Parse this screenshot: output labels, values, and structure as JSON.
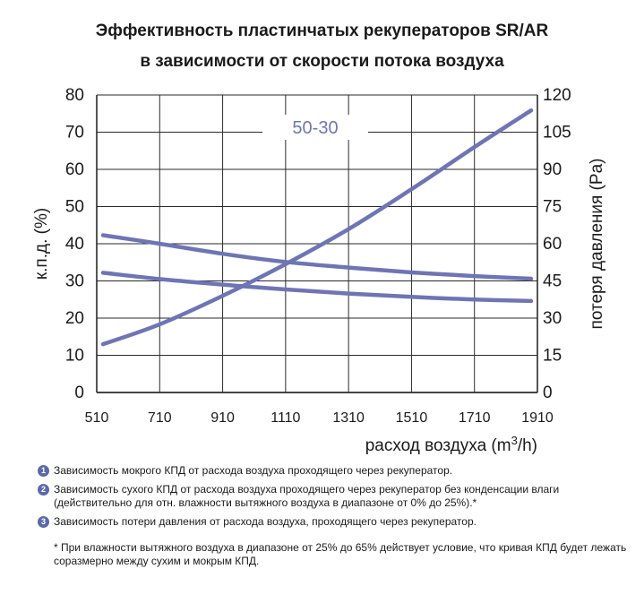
{
  "chart_data": {
    "type": "line",
    "title": "Эффективность пластинчатых рекуператоров SR/AR",
    "subtitle": "в зависимости от скорости потока воздуха",
    "xlabel_main": "расход воздуха (m",
    "xlabel_sup": "3",
    "xlabel_tail": "/h)",
    "ylabel": "к.п.д. (%)",
    "y2label": "потеря давления (Pa)",
    "annotation": "50-30",
    "xlim": [
      510,
      1910
    ],
    "ylim": [
      0,
      80
    ],
    "y2lim": [
      0,
      120
    ],
    "grid": true,
    "line_color": "#6e75b5",
    "xticks": [
      "510",
      "710",
      "910",
      "1110",
      "1310",
      "1510",
      "1710",
      "1910"
    ],
    "yticks": [
      "0",
      "10",
      "20",
      "30",
      "40",
      "50",
      "60",
      "70",
      "80"
    ],
    "y2ticks": [
      "0",
      "15",
      "30",
      "45",
      "60",
      "75",
      "90",
      "105",
      "120"
    ],
    "series": [
      {
        "axis": "left",
        "x": [
          530,
          710,
          910,
          1110,
          1310,
          1510,
          1710,
          1890
        ],
        "y": [
          42.3,
          40,
          37.3,
          35.1,
          33.6,
          32.3,
          31.3,
          30.6
        ]
      },
      {
        "axis": "left",
        "x": [
          530,
          710,
          910,
          1110,
          1310,
          1510,
          1710,
          1890
        ],
        "y": [
          32.2,
          30.5,
          29,
          27.7,
          26.6,
          25.7,
          25,
          24.6
        ]
      },
      {
        "axis": "right",
        "x": [
          530,
          710,
          910,
          1110,
          1310,
          1510,
          1710,
          1890
        ],
        "y": [
          19.5,
          27.5,
          39,
          51.8,
          65.9,
          82,
          99,
          113.8
        ]
      }
    ]
  },
  "notes": [
    {
      "marker": "1",
      "text": "Зависимость мокрого КПД от расхода воздуха проходящего через рекуператор."
    },
    {
      "marker": "2",
      "text": "Зависимость сухого КПД от расхода воздуха проходящего через рекуператор без конденсации влаги (действительно для отн. влажности вытяжного воздуха в диапазоне от 0% до 25%).*"
    },
    {
      "marker": "3",
      "text": "Зависимость потери давления от расхода воздуха, проходящего через рекуператор."
    }
  ],
  "footnote": "* При влажности вытяжного воздуха в диапазоне от 25% до 65% действует условие, что кривая КПД будет лежать соразмерно между сухим и мокрым КПД."
}
